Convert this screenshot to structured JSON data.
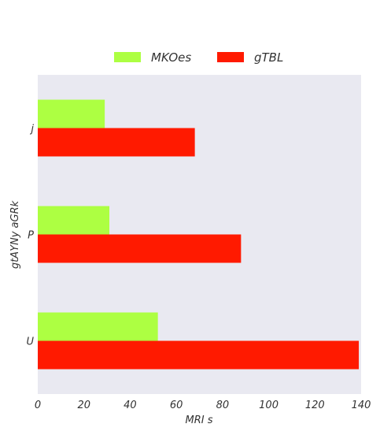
{
  "chart_data": {
    "type": "bar",
    "orientation": "horizontal",
    "categories": [
      "j",
      "P",
      "U"
    ],
    "series": [
      {
        "name": "MKOes",
        "color": "#adff42",
        "values": [
          29,
          31,
          52
        ]
      },
      {
        "name": "gTBL",
        "color": "#ff1a00",
        "values": [
          68,
          88,
          139
        ]
      }
    ],
    "xlabel": "MRI s",
    "ylabel": "gtAYNy  aGRk",
    "xlim": [
      0,
      140
    ],
    "xticks": [
      "0",
      "20",
      "40",
      "60",
      "80",
      "100",
      "120",
      "140"
    ],
    "grid": false,
    "legend_placement": "top-center",
    "plot_background": "#e9e9f1"
  }
}
